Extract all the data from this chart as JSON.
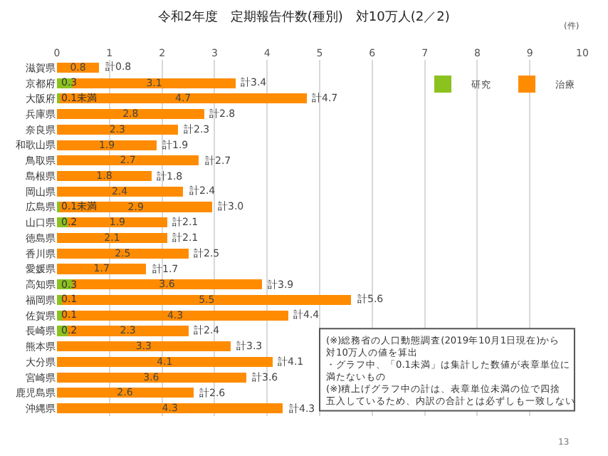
{
  "chart_data": {
    "type": "bar",
    "orientation": "horizontal",
    "stacked": true,
    "title": "令和2年度　定期報告件数(種別)　対10万人(2／2)",
    "xlabel": "(件)",
    "categories": [
      "滋賀県",
      "京都府",
      "大阪府",
      "兵庫県",
      "奈良県",
      "和歌山県",
      "鳥取県",
      "島根県",
      "岡山県",
      "広島県",
      "山口県",
      "徳島県",
      "香川県",
      "愛媛県",
      "高知県",
      "福岡県",
      "佐賀県",
      "長崎県",
      "熊本県",
      "大分県",
      "宮崎県",
      "鹿児島県",
      "沖縄県"
    ],
    "series": [
      {
        "name": "研究",
        "color": "#8cc21f",
        "values": [
          null,
          0.3,
          0.05,
          null,
          null,
          null,
          null,
          null,
          null,
          0.05,
          0.2,
          null,
          null,
          null,
          0.3,
          0.1,
          0.1,
          0.2,
          null,
          null,
          null,
          null,
          null
        ],
        "value_labels": [
          null,
          "0.3",
          "0.1未満",
          null,
          null,
          null,
          null,
          null,
          null,
          "0.1未満",
          "0.2",
          null,
          null,
          null,
          "0.3",
          "0.1",
          "0.1",
          "0.2",
          null,
          null,
          null,
          null,
          null
        ]
      },
      {
        "name": "治療",
        "color": "#ff8c00",
        "values": [
          0.8,
          3.1,
          4.7,
          2.8,
          2.3,
          1.9,
          2.7,
          1.8,
          2.4,
          2.9,
          1.9,
          2.1,
          2.5,
          1.7,
          3.6,
          5.5,
          4.3,
          2.3,
          3.3,
          4.1,
          3.6,
          2.6,
          4.3
        ],
        "value_labels": [
          "0.8",
          "3.1",
          "4.7",
          "2.8",
          "2.3",
          "1.9",
          "2.7",
          "1.8",
          "2.4",
          "2.9",
          "1.9",
          "2.1",
          "2.5",
          "1.7",
          "3.6",
          "5.5",
          "4.3",
          "2.3",
          "3.3",
          "4.1",
          "3.6",
          "2.6",
          "4.3"
        ]
      }
    ],
    "totals": [
      "計0.8",
      "計3.4",
      "計4.7",
      "計2.8",
      "計2.3",
      "計1.9",
      "計2.7",
      "計1.8",
      "計2.4",
      "計3.0",
      "計2.1",
      "計2.1",
      "計2.5",
      "計1.7",
      "計3.9",
      "計5.6",
      "計4.4",
      "計2.4",
      "計3.3",
      "計4.1",
      "計3.6",
      "計2.6",
      "計4.3"
    ],
    "xlim": [
      0,
      10
    ],
    "xticks": [
      0,
      1,
      2,
      3,
      4,
      5,
      6,
      7,
      8,
      9,
      10
    ],
    "grid": "x",
    "legend": "top right",
    "annotations": [
      "(※)総務省の人口動態調査(2019年10月1日現在)から対10万人の値を算出",
      "・グラフ中、「0.1未満」は集計した数値が表章単位に満たないもの",
      "(※)積上げグラフ中の計は、表章単位未満の位で四捨五入しているため、内訳の合計とは必ずしも一致しない",
      "13"
    ]
  }
}
